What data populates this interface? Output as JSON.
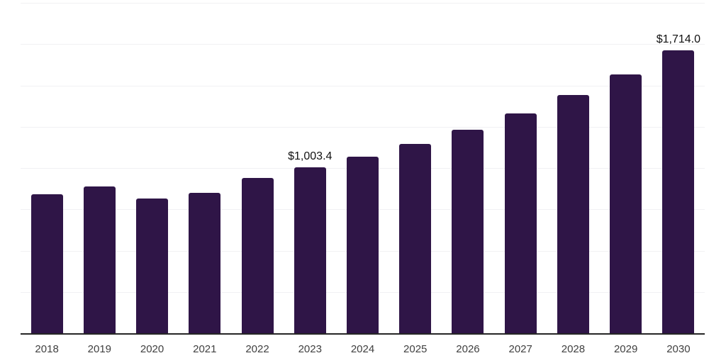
{
  "chart_data": {
    "type": "bar",
    "title": "",
    "xlabel": "",
    "ylabel": "",
    "categories": [
      "2018",
      "2019",
      "2020",
      "2021",
      "2022",
      "2023",
      "2024",
      "2025",
      "2026",
      "2027",
      "2028",
      "2029",
      "2030"
    ],
    "values": [
      842,
      890,
      815,
      848,
      940,
      1003.4,
      1068,
      1145,
      1232,
      1329,
      1441,
      1568,
      1714
    ],
    "data_labels": {
      "2023": "$1,003.4",
      "2030": "$1,714.0"
    },
    "ylim": [
      0,
      2000
    ],
    "gridline_step": 250,
    "grid": "horizontal",
    "legend": null,
    "colors": {
      "bar": "#2f1547",
      "gridline": "#f1f1f3",
      "axis_line": "#262626",
      "tick_label": "#404040",
      "data_label": "#111111",
      "background": "#ffffff"
    }
  }
}
